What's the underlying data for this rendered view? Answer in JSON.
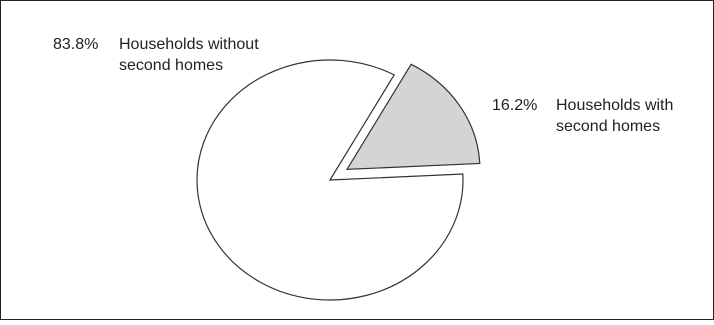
{
  "chart_data": {
    "type": "pie",
    "slices": [
      {
        "percent_label": "83.8%",
        "value": 83.8,
        "label_lines": [
          "Households without",
          "second homes"
        ],
        "color": "#ffffff",
        "exploded": false
      },
      {
        "percent_label": "16.2%",
        "value": 16.2,
        "label_lines": [
          "Households with",
          "second homes"
        ],
        "color": "#d4d4d4",
        "exploded": true
      }
    ],
    "outline_color": "#333333"
  }
}
